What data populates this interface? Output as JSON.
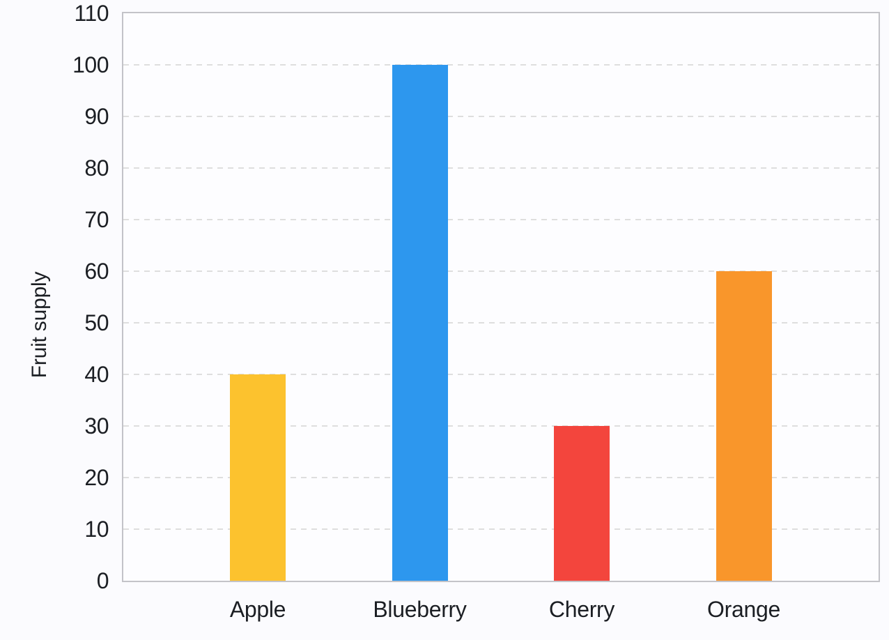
{
  "chart_data": {
    "type": "bar",
    "title": "",
    "xlabel": "",
    "ylabel": "Fruit supply",
    "categories": [
      "Apple",
      "Blueberry",
      "Cherry",
      "Orange"
    ],
    "values": [
      40,
      100,
      30,
      60
    ],
    "bar_colors": [
      "#FCC22E",
      "#2D97EE",
      "#F3453D",
      "#F9962B"
    ],
    "ylim": [
      0,
      110
    ],
    "ytick_step": 10,
    "yticks": [
      0,
      10,
      20,
      30,
      40,
      50,
      60,
      70,
      80,
      90,
      100,
      110
    ],
    "grid": "horizontal-dashed",
    "legend": "none",
    "palette": {
      "page_bg": "#FBFBFE",
      "plot_bg": "#FDFDFF",
      "plot_border": "#C3C3C8",
      "gridline": "#DEDEDE",
      "text": "#1B1E23"
    }
  }
}
